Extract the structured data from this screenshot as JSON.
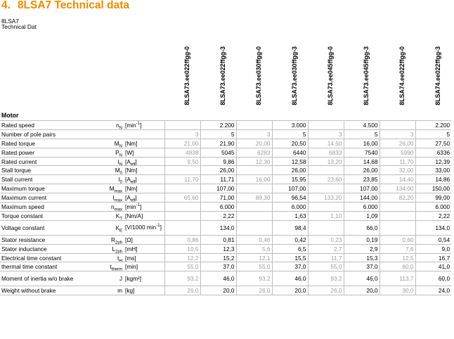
{
  "section_number": "4.",
  "section_title": "8LSA7 Technical data",
  "subtitle_line1": "8LSA7",
  "subtitle_line2": "Technical Dat",
  "columns": [
    "8LSA73.ee022ffgg-0",
    "8LSA73.ee022ffgg-3",
    "8LSA73.ee030ffgg-0",
    "8LSA73.ee030ffgg-3",
    "8LSA73.ee045ffgg-0",
    "8LSA73.ee045ffgg-3",
    "8LSA74.ee022ffgg-0",
    "8LSA74.ee022ffgg-3"
  ],
  "section_label": "Motor",
  "rows": [
    {
      "label": "Rated speed",
      "sym": "n",
      "symsub": "N",
      "unit": "min",
      "unitsup": "-1",
      "v": [
        "",
        "2.200",
        "",
        "3.000",
        "",
        "4.500",
        "",
        "2.200"
      ]
    },
    {
      "label": "Number of pole pairs",
      "sym": "",
      "symsub": "",
      "unit": "",
      "unitsup": "",
      "v": [
        "3",
        "5",
        "3",
        "5",
        "3",
        "5",
        "3",
        "5"
      ]
    },
    {
      "label": "Rated torque",
      "sym": "M",
      "symsub": "N",
      "unit": "Nm",
      "unitsup": "",
      "v": [
        "21,00",
        "21,90",
        "20,00",
        "20,50",
        "14,50",
        "16,00",
        "26,00",
        "27,50"
      ]
    },
    {
      "label": "Rated power",
      "sym": "P",
      "symsub": "N",
      "unit": "W",
      "unitsup": "",
      "v": [
        "4838",
        "5045",
        "6283",
        "6440",
        "6833",
        "7540",
        "5990",
        "6336"
      ]
    },
    {
      "label": "Rated current",
      "sym": "I",
      "symsub": "N",
      "unit": "A",
      "unitsubx": "eff",
      "unitsup": "",
      "v": [
        "9,50",
        "9,86",
        "12,30",
        "12,58",
        "13,20",
        "14,68",
        "11,70",
        "12,39"
      ]
    },
    {
      "label": "Stall torque",
      "sym": "M",
      "symsub": "0",
      "unit": "Nm",
      "unitsup": "",
      "v": [
        "",
        "26,00",
        "",
        "26,00",
        "",
        "26,00",
        "32,00",
        "33,00"
      ]
    },
    {
      "label": "Stall current",
      "sym": "I",
      "symsub": "0",
      "unit": "A",
      "unitsubx": "eff",
      "unitsup": "",
      "v": [
        "11,70",
        "11,71",
        "16,00",
        "15,95",
        "23,60",
        "23,85",
        "14,40",
        "14,86"
      ]
    },
    {
      "label": "Maximum torque",
      "sym": "M",
      "symsub": "max",
      "unit": "Nm",
      "unitsup": "",
      "v": [
        "",
        "107,00",
        "",
        "107,00",
        "",
        "107,00",
        "134,00",
        "150,00"
      ]
    },
    {
      "label": "Maximum current",
      "sym": "I",
      "symsub": "max",
      "unit": "A",
      "unitsubx": "eff",
      "unitsup": "",
      "v": [
        "65,60",
        "71,00",
        "89,30",
        "96,54",
        "133,20",
        "144,00",
        "82,20",
        "99,00"
      ]
    },
    {
      "label": "Maximum speed",
      "sym": "n",
      "symsub": "max",
      "unit": "min",
      "unitsup": "-1",
      "v": [
        "",
        "6.000",
        "",
        "6.000",
        "",
        "6.000",
        "",
        "6.000"
      ]
    },
    {
      "label": "Torque constant",
      "sym": "K",
      "symsub": "T",
      "unit": "Nm/A",
      "unitsup": "",
      "v": [
        "",
        "2,22",
        "",
        "1,63",
        "1,10",
        "1,09",
        "",
        "2,22"
      ]
    },
    {
      "label": "Voltage constant",
      "sym": "K",
      "symsub": "E",
      "unit": "V/1000 min",
      "unitsup": "-1",
      "tall": true,
      "v": [
        "",
        "134,0",
        "",
        "98,4",
        "",
        "66,0",
        "",
        "134,0"
      ]
    },
    {
      "label": "Stator resistance",
      "sym": "R",
      "symsub": "2ph",
      "unit": "Ω",
      "unitsup": "",
      "v": [
        "0,86",
        "0,81",
        "0,46",
        "0,42",
        "0,23",
        "0,19",
        "0,60",
        "0,54"
      ]
    },
    {
      "label": "Stator inductance",
      "sym": "L",
      "symsub": "2ph",
      "unit": "mH",
      "unitsup": "",
      "v": [
        "10,5",
        "12,3",
        "5,6",
        "6,5",
        "2,7",
        "2,9",
        "7,6",
        "9,0"
      ]
    },
    {
      "label": "Electrical time constant",
      "sym": "t",
      "symsub": "el",
      "unit": "ms",
      "unitsup": "",
      "v": [
        "12,2",
        "15,2",
        "12,1",
        "15,5",
        "11,7",
        "15,3",
        "12,5",
        "16,7"
      ]
    },
    {
      "label": "thermal time constant",
      "sym": "t",
      "symsub": "therm",
      "unit": "min",
      "unitsup": "",
      "v": [
        "55,0",
        "37,0",
        "55,0",
        "37,0",
        "55,0",
        "37,0",
        "60,0",
        "41,0"
      ]
    },
    {
      "label": "Moment of inertia w/o brake",
      "sym": "J",
      "symsub": "",
      "unit": "kgm²",
      "unitsup": "",
      "tall": true,
      "v": [
        "93,2",
        "46,0",
        "93,2",
        "46,0",
        "93,2",
        "46,0",
        "113,7",
        "60,0"
      ]
    },
    {
      "label": "Weight without brake",
      "sym": "m",
      "symsub": "",
      "unit": "kg",
      "unitsup": "",
      "v": [
        "26,0",
        "20,0",
        "26,0",
        "20,0",
        "26,0",
        "20,0",
        "30,0",
        "24,0"
      ]
    }
  ]
}
